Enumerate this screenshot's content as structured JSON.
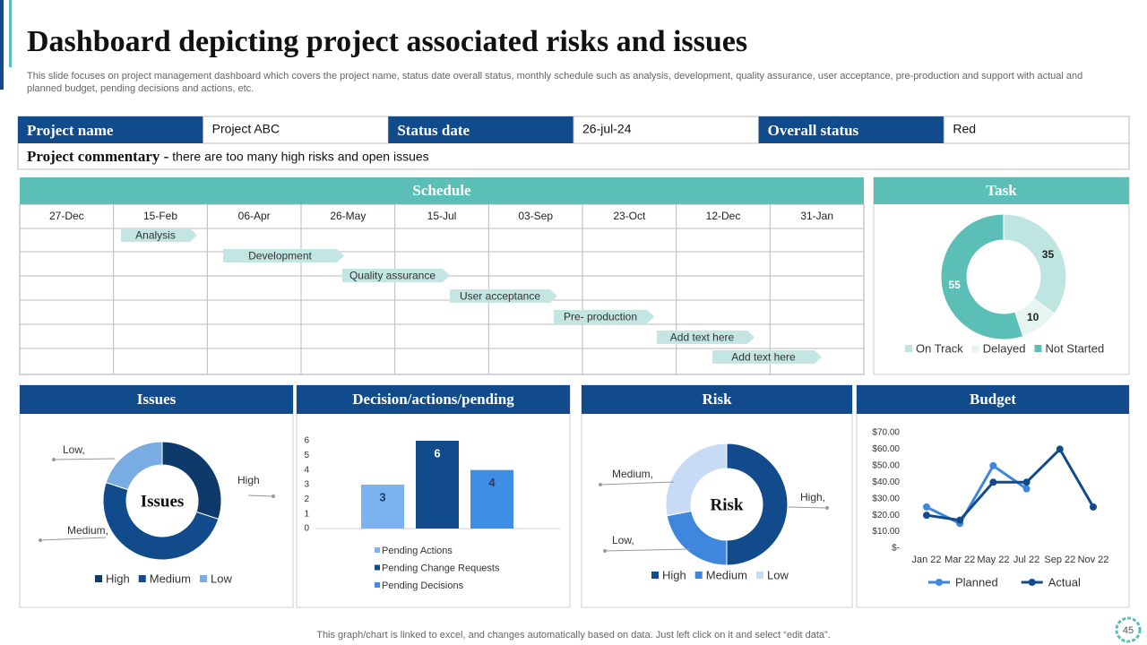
{
  "header": {
    "title": "Dashboard depicting project associated risks and issues",
    "subtitle": "This slide focuses on project management dashboard which covers the project name, status date overall status, monthly schedule such as analysis, development, quality assurance, user acceptance, pre-production and support with actual and planned budget, pending decisions and actions, etc."
  },
  "project": {
    "labels": [
      "Project name",
      "Status date",
      "Overall status"
    ],
    "values": [
      "Project ABC",
      "26-jul-24",
      "Red"
    ],
    "commentary_label": "Project commentary -",
    "commentary": "there are too many high risks and open issues"
  },
  "schedule": {
    "title": "Schedule",
    "dates": [
      "27-Dec",
      "15-Feb",
      "06-Apr",
      "26-May",
      "15-Jul",
      "03-Sep",
      "23-Oct",
      "12-Dec",
      "31-Jan"
    ],
    "tasks": [
      "Analysis",
      "Development",
      "Quality assurance",
      "User acceptance",
      "Pre- production",
      "Add text here",
      "Add text here"
    ]
  },
  "chart_data": [
    {
      "type": "pie",
      "title": "Task",
      "categories": [
        "On Track",
        "Delayed",
        "Not Started"
      ],
      "values": [
        35,
        10,
        55
      ],
      "colors": [
        "#bfe5e1",
        "#e6f4f2",
        "#5bbfb7"
      ]
    },
    {
      "type": "pie",
      "title": "Issues",
      "center_label": "Issues",
      "categories": [
        "High",
        "Medium",
        "Low"
      ],
      "values": [
        30,
        50,
        20
      ],
      "colors": [
        "#0d3a6b",
        "#114b8c",
        "#78ace2"
      ],
      "callout_labels": [
        "High",
        "Medium,",
        "Low,"
      ]
    },
    {
      "type": "bar",
      "title": "Decision/actions/pending",
      "categories": [
        "Pending Actions",
        "Pending Change Requests",
        "Pending Decisions"
      ],
      "values": [
        3,
        6,
        4
      ],
      "colors": [
        "#7ab3ef",
        "#114b8c",
        "#3f8ee6"
      ],
      "ylim": [
        0,
        6
      ],
      "yticks": [
        0,
        1,
        2,
        3,
        4,
        5,
        6
      ]
    },
    {
      "type": "pie",
      "title": "Risk",
      "center_label": "Risk",
      "categories": [
        "High",
        "Medium",
        "Low"
      ],
      "values": [
        50,
        22,
        28
      ],
      "colors": [
        "#114b8c",
        "#3f86dd",
        "#c7dbf5"
      ],
      "callout_labels": [
        "High,",
        "Medium,",
        "Low,"
      ]
    },
    {
      "type": "line",
      "title": "Budget",
      "categories": [
        "Jan 22",
        "Mar 22",
        "May 22",
        "Jul 22",
        "Sep 22",
        "Nov 22"
      ],
      "series": [
        {
          "name": "Planned",
          "color": "#3f86dd",
          "values": [
            25,
            15,
            50,
            36,
            null,
            null
          ]
        },
        {
          "name": "Actual",
          "color": "#114b8c",
          "values": [
            20,
            17,
            40,
            40,
            60,
            25
          ]
        }
      ],
      "ylim": [
        0,
        70
      ],
      "yticks": [
        {
          "value": 0,
          "label": "$-"
        },
        {
          "value": 10,
          "label": "$10.00"
        },
        {
          "value": 20,
          "label": "$20.00"
        },
        {
          "value": 30,
          "label": "$30.00"
        },
        {
          "value": 40,
          "label": "$40.00"
        },
        {
          "value": 50,
          "label": "$50.00"
        },
        {
          "value": 60,
          "label": "$60.00"
        },
        {
          "value": 70,
          "label": "$70.00"
        }
      ]
    }
  ],
  "footer": "This graph/chart is linked to excel, and changes automatically based on data. Just left click on it and select “edit data”.",
  "page_number": "45"
}
